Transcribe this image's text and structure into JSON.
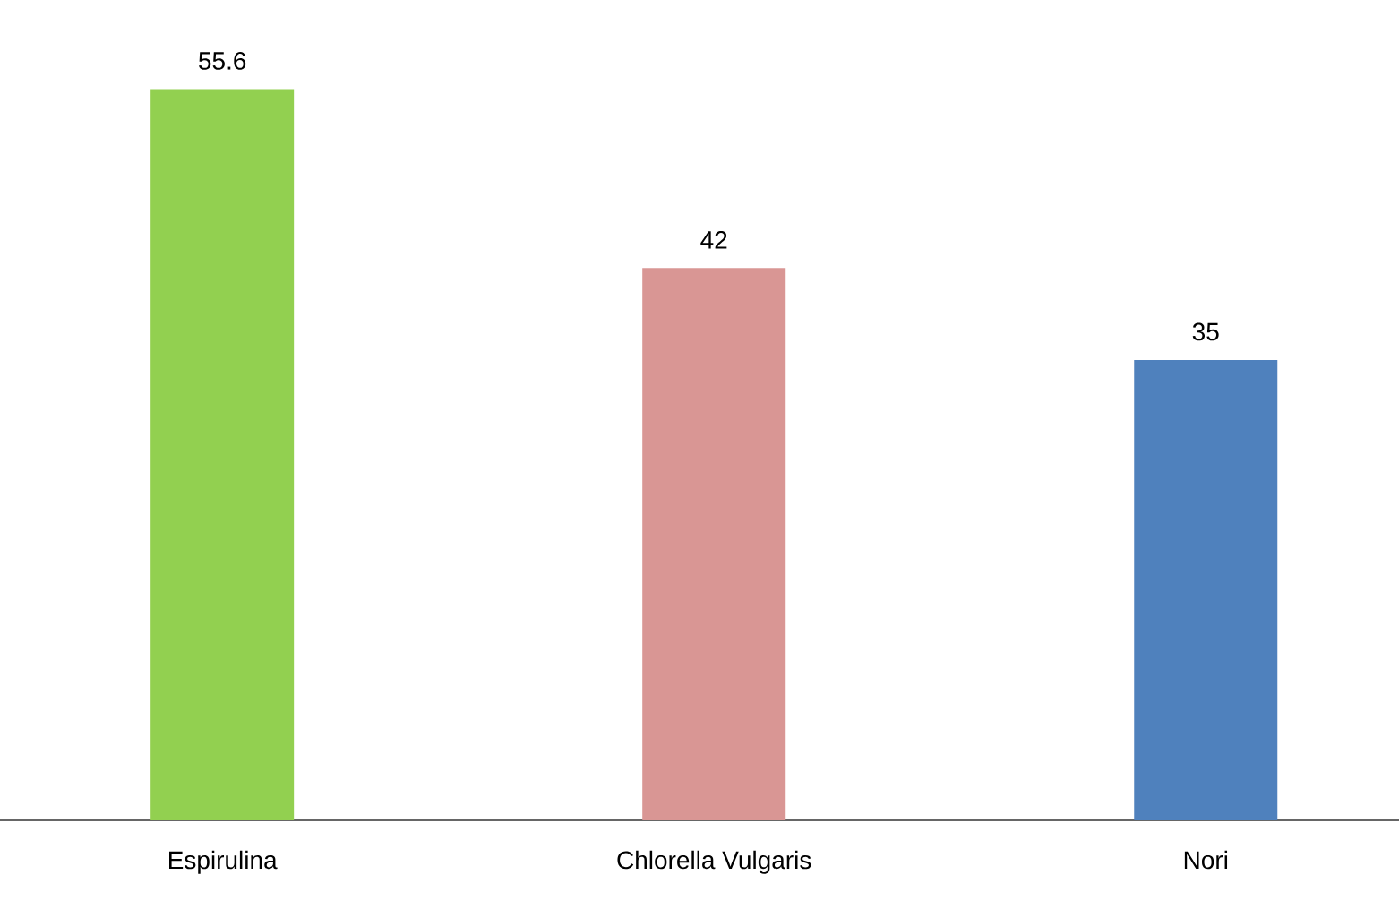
{
  "chart_data": {
    "type": "bar",
    "categories": [
      "Espirulina",
      "Chlorella Vulgaris",
      "Nori"
    ],
    "values": [
      55.6,
      42,
      35
    ],
    "colors": [
      "#92d050",
      "#d99694",
      "#4f81bd"
    ],
    "data_labels": true
  }
}
